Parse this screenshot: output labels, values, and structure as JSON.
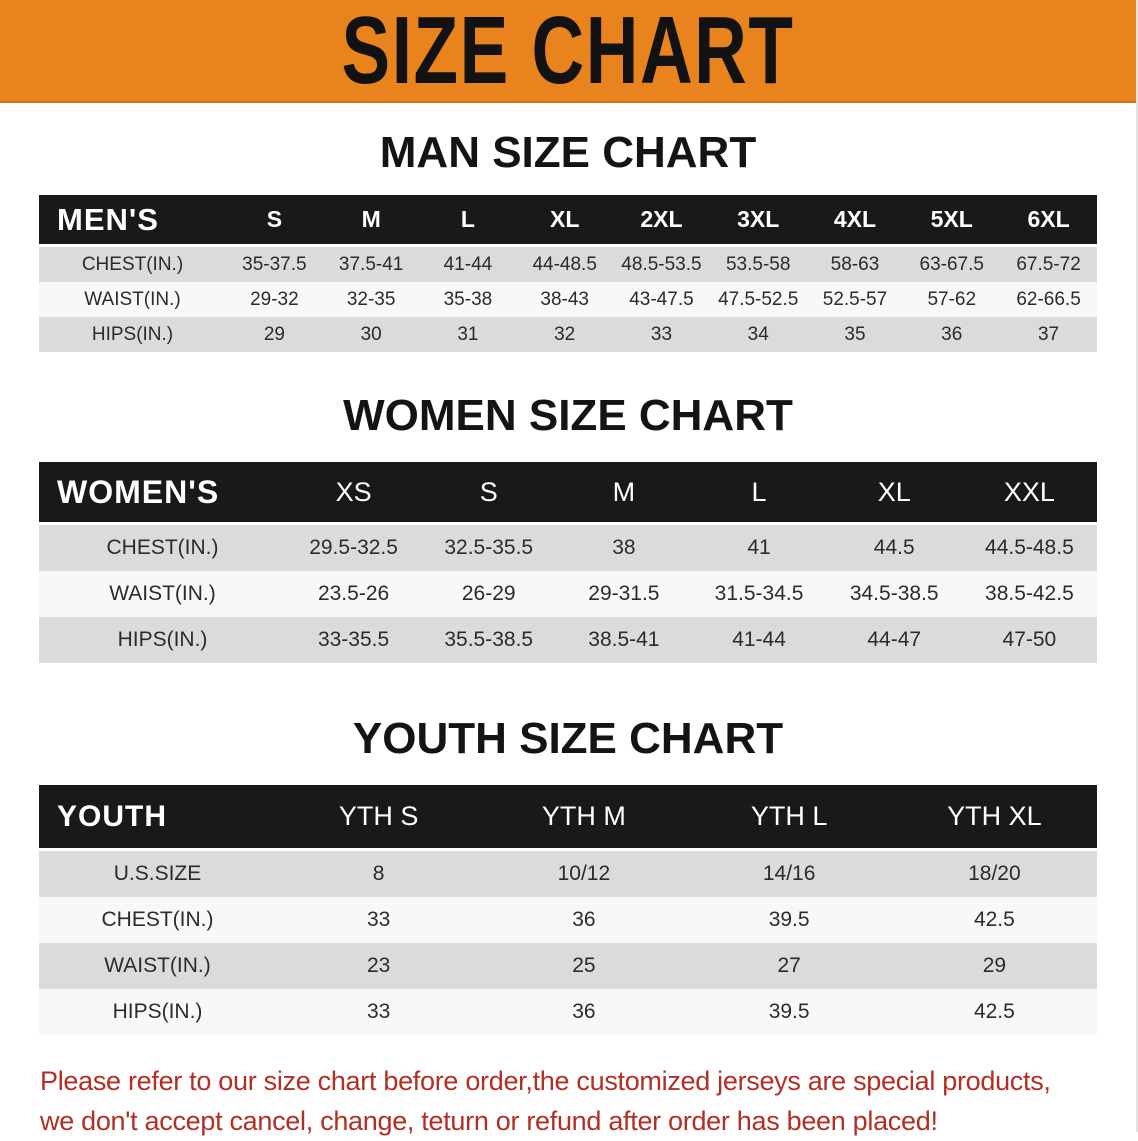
{
  "colors": {
    "banner_bg": "#E8831E",
    "header_bar": "#191919",
    "row_shaded": "#DBDBDB",
    "footer_text": "#B32E24"
  },
  "banner": {
    "title": "SIZE CHART"
  },
  "sections": [
    {
      "heading": "MAN SIZE CHART",
      "table": {
        "header_label": "MEN'S",
        "columns": [
          "S",
          "M",
          "L",
          "XL",
          "2XL",
          "3XL",
          "4XL",
          "5XL",
          "6XL"
        ],
        "rows": [
          {
            "label": "CHEST(IN.)",
            "values": [
              "35-37.5",
              "37.5-41",
              "41-44",
              "44-48.5",
              "48.5-53.5",
              "53.5-58",
              "58-63",
              "63-67.5",
              "67.5-72"
            ]
          },
          {
            "label": "WAIST(IN.)",
            "values": [
              "29-32",
              "32-35",
              "35-38",
              "38-43",
              "43-47.5",
              "47.5-52.5",
              "52.5-57",
              "57-62",
              "62-66.5"
            ]
          },
          {
            "label": "HIPS(IN.)",
            "values": [
              "29",
              "30",
              "31",
              "32",
              "33",
              "34",
              "35",
              "36",
              "37"
            ]
          }
        ]
      }
    },
    {
      "heading": "WOMEN SIZE CHART",
      "table": {
        "header_label": "WOMEN'S",
        "columns": [
          "XS",
          "S",
          "M",
          "L",
          "XL",
          "XXL"
        ],
        "rows": [
          {
            "label": "CHEST(IN.)",
            "values": [
              "29.5-32.5",
              "32.5-35.5",
              "38",
              "41",
              "44.5",
              "44.5-48.5"
            ]
          },
          {
            "label": "WAIST(IN.)",
            "values": [
              "23.5-26",
              "26-29",
              "29-31.5",
              "31.5-34.5",
              "34.5-38.5",
              "38.5-42.5"
            ]
          },
          {
            "label": "HIPS(IN.)",
            "values": [
              "33-35.5",
              "35.5-38.5",
              "38.5-41",
              "41-44",
              "44-47",
              "47-50"
            ]
          }
        ]
      }
    },
    {
      "heading": "YOUTH SIZE CHART",
      "table": {
        "header_label": "YOUTH",
        "columns": [
          "YTH S",
          "YTH M",
          "YTH L",
          "YTH XL"
        ],
        "rows": [
          {
            "label": "U.S.SIZE",
            "values": [
              "8",
              "10/12",
              "14/16",
              "18/20"
            ]
          },
          {
            "label": "CHEST(IN.)",
            "values": [
              "33",
              "36",
              "39.5",
              "42.5"
            ]
          },
          {
            "label": "WAIST(IN.)",
            "values": [
              "23",
              "25",
              "27",
              "29"
            ]
          },
          {
            "label": "HIPS(IN.)",
            "values": [
              "33",
              "36",
              "39.5",
              "42.5"
            ]
          }
        ]
      }
    }
  ],
  "footer": {
    "line1": "Please refer to our size chart before order,the customized jerseys are special products,",
    "line2": "we don't accept cancel, change, teturn or refund after order has been placed!"
  }
}
